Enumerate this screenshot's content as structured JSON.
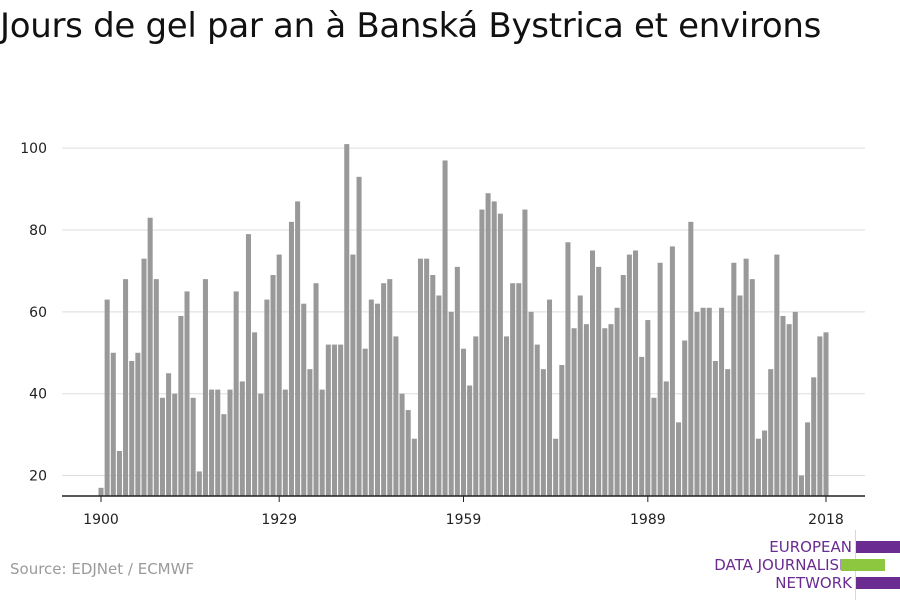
{
  "title": "Jours de gel par an à Banská Bystrica et environs",
  "source": "Source: EDJNet / ECMWF",
  "logo": {
    "lines": [
      "EUROPEAN",
      "DATA JOURNALISM",
      "NETWORK"
    ],
    "colors": {
      "purple": "#6a2c91",
      "green": "#8dc63f"
    }
  },
  "colors": {
    "bar": "#999999",
    "grid": "#dddddd",
    "axis": "#222222"
  },
  "chart_data": {
    "type": "bar",
    "title": "Jours de gel par an à Banská Bystrica et environs",
    "xlabel": "",
    "ylabel": "",
    "x_start": 1900,
    "x_end": 2018,
    "xticks": [
      1900,
      1929,
      1959,
      1989,
      2018
    ],
    "yticks": [
      20,
      40,
      60,
      80,
      100
    ],
    "ylim": [
      15,
      102
    ],
    "grid": true,
    "values": [
      17,
      63,
      50,
      26,
      68,
      48,
      50,
      73,
      83,
      68,
      39,
      45,
      40,
      59,
      65,
      39,
      21,
      68,
      41,
      41,
      35,
      41,
      65,
      43,
      79,
      55,
      40,
      63,
      69,
      74,
      41,
      82,
      87,
      62,
      46,
      67,
      41,
      52,
      52,
      52,
      101,
      74,
      93,
      51,
      63,
      62,
      67,
      68,
      54,
      40,
      36,
      29,
      73,
      73,
      69,
      64,
      97,
      60,
      71,
      51,
      42,
      54,
      85,
      89,
      87,
      84,
      54,
      67,
      67,
      85,
      60,
      52,
      46,
      63,
      29,
      47,
      77,
      56,
      64,
      57,
      75,
      71,
      56,
      57,
      61,
      69,
      74,
      75,
      49,
      58,
      39,
      72,
      43,
      76,
      33,
      53,
      82,
      60,
      61,
      61,
      48,
      61,
      46,
      72,
      64,
      73,
      68,
      29,
      31,
      46,
      74,
      59,
      57,
      60,
      20,
      33,
      44,
      54,
      55
    ]
  }
}
